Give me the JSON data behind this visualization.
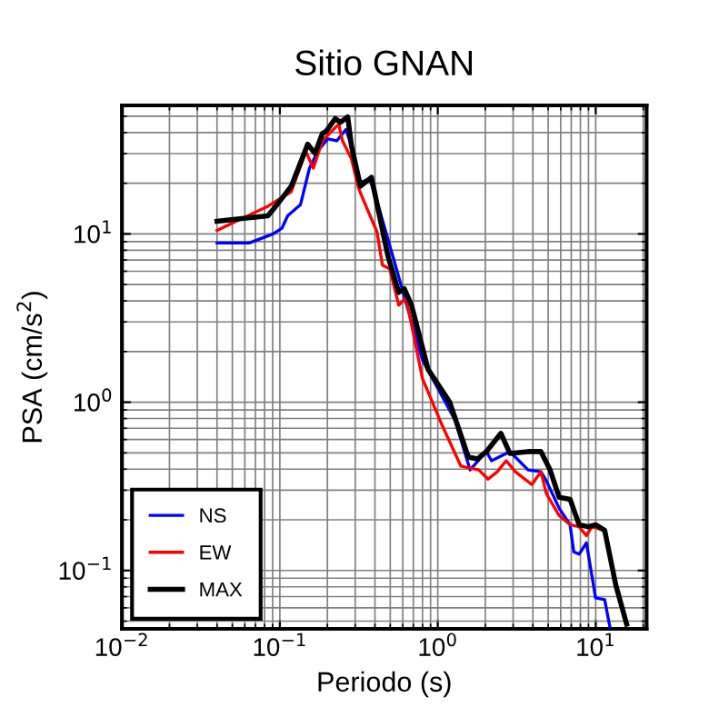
{
  "chart_data": {
    "type": "line",
    "title": "Sitio GNAN",
    "xlabel": "Periodo (s)",
    "ylabel": "PSA (cm/s$^{2}$)",
    "log": "xy",
    "grid": true,
    "legend": "bottom left",
    "marker": "none",
    "line_style": "solid",
    "xlim": [
      0.01,
      21
    ],
    "ylim": [
      0.045,
      58
    ],
    "xticks": [
      {
        "value": 0.01,
        "label": "10$^{−2}$"
      },
      {
        "value": 0.1,
        "label": "10$^{−1}$"
      },
      {
        "value": 1,
        "label": "10$^{0}$"
      },
      {
        "value": 10,
        "label": "10$^{1}$"
      }
    ],
    "yticks": [
      {
        "value": 0.1,
        "label": "10$^{−1}$"
      },
      {
        "value": 1,
        "label": "10$^{0}$"
      },
      {
        "value": 10,
        "label": "10$^{1}$"
      }
    ],
    "series": [
      {
        "name": "NS",
        "color": "#0000ff",
        "x": [
          0.04,
          0.064,
          0.0906,
          0.103,
          0.112,
          0.135,
          0.154,
          0.176,
          0.201,
          0.23,
          0.262,
          0.284,
          0.315,
          0.371,
          0.412,
          0.8,
          1.29,
          1.6,
          2.03,
          2.19,
          2.86,
          3.73,
          4.5,
          4.87,
          5.87,
          6.88,
          7.26,
          7.85,
          8.73,
          9.98,
          11.4,
          12.3
        ],
        "values": [
          8.83,
          8.83,
          10,
          10.8,
          12.8,
          14.9,
          24.6,
          31.6,
          36.7,
          35.8,
          41.7,
          33.3,
          20.1,
          21.2,
          15.7,
          1.78,
          0.778,
          0.396,
          0.509,
          0.449,
          0.509,
          0.396,
          0.386,
          0.341,
          0.234,
          0.187,
          0.129,
          0.125,
          0.146,
          0.0687,
          0.067,
          0.046
        ]
      },
      {
        "name": "EW",
        "color": "#ff0000",
        "x": [
          0.04,
          0.084,
          0.118,
          0.146,
          0.163,
          0.186,
          0.218,
          0.236,
          0.249,
          0.284,
          0.315,
          0.36,
          0.412,
          0.446,
          0.496,
          0.566,
          0.63,
          0.8,
          1.07,
          1.4,
          1.82,
          2.08,
          2.38,
          2.71,
          3.1,
          3.94,
          4.5,
          4.87,
          5.87,
          6.88,
          7.85,
          8.73,
          9.46,
          11.4
        ],
        "values": [
          10.5,
          14.6,
          17.8,
          30.8,
          24.6,
          35.8,
          41.7,
          44.9,
          35.8,
          27.9,
          18.7,
          13.8,
          10.3,
          6.53,
          6.21,
          3.77,
          4.17,
          1.38,
          0.722,
          0.417,
          0.396,
          0.349,
          0.386,
          0.449,
          0.386,
          0.324,
          0.386,
          0.286,
          0.212,
          0.187,
          0.182,
          0.161,
          0.182,
          0.173
        ]
      },
      {
        "name": "MAX",
        "color": "#000000",
        "x": [
          0.04,
          0.084,
          0.098,
          0.118,
          0.15,
          0.167,
          0.186,
          0.196,
          0.224,
          0.242,
          0.269,
          0.284,
          0.324,
          0.38,
          0.483,
          0.566,
          0.614,
          0.682,
          0.867,
          1.19,
          1.56,
          1.78,
          2.03,
          2.51,
          2.86,
          3.73,
          4.5,
          5.14,
          5.87,
          6.88,
          7.85,
          8.97,
          9.98,
          11.4,
          13.4,
          15.7
        ],
        "values": [
          11.9,
          12.8,
          15.3,
          19.2,
          34.1,
          30.1,
          39.6,
          40.6,
          48.4,
          46.0,
          49.6,
          33.3,
          19.2,
          21.7,
          7.41,
          4.49,
          4.72,
          3.77,
          1.57,
          1.0,
          0.472,
          0.46,
          0.509,
          0.653,
          0.496,
          0.509,
          0.509,
          0.396,
          0.272,
          0.265,
          0.187,
          0.182,
          0.187,
          0.173,
          0.082,
          0.048
        ]
      }
    ]
  }
}
